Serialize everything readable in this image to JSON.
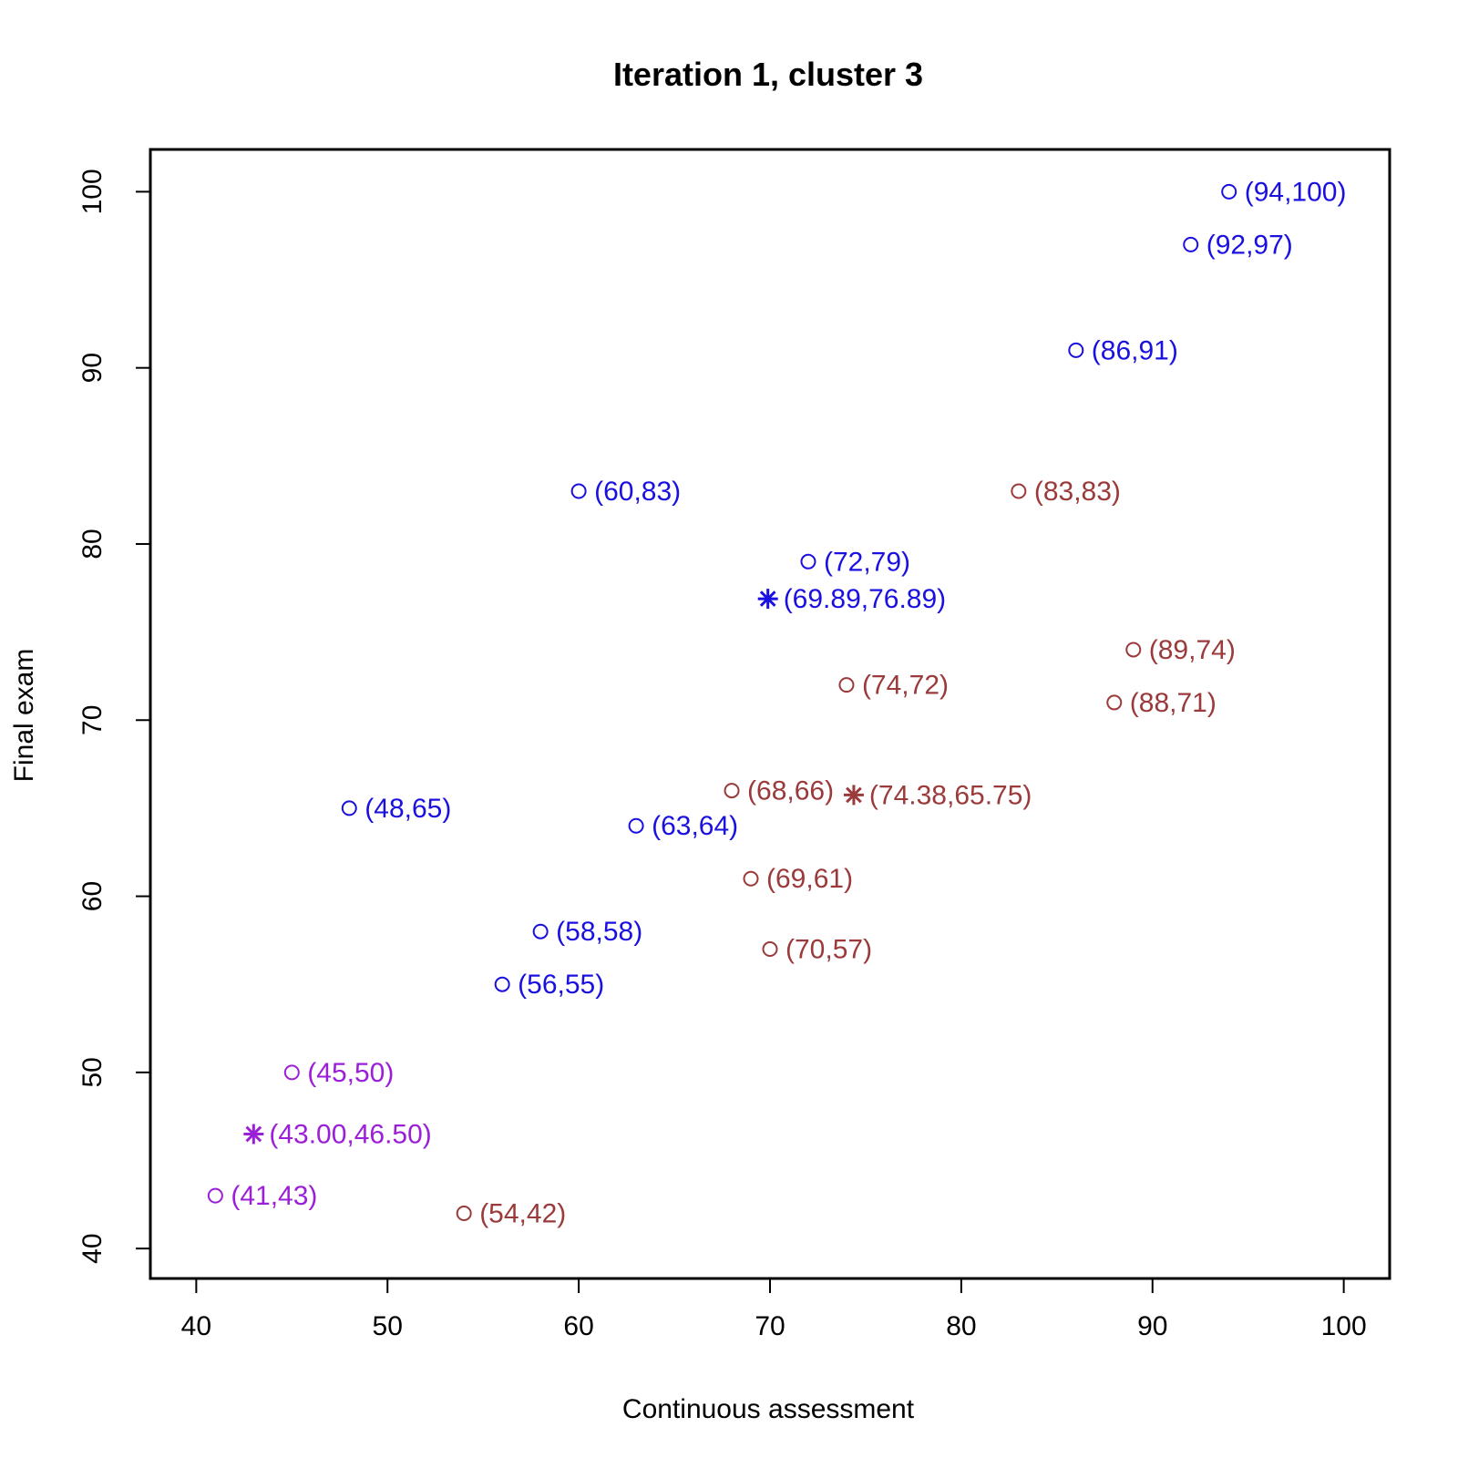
{
  "chart_data": {
    "type": "scatter",
    "title": "Iteration 1, cluster 3",
    "xlabel": "Continuous assessment",
    "ylabel": "Final exam",
    "xlim": [
      37.6,
      102.4
    ],
    "ylim": [
      38.3,
      102.4
    ],
    "xticks": [
      40,
      50,
      60,
      70,
      80,
      90,
      100
    ],
    "yticks": [
      40,
      50,
      60,
      70,
      80,
      90,
      100
    ],
    "grid": false,
    "series": [
      {
        "color": "#1a10e0",
        "points": [
          {
            "x": 94,
            "y": 100,
            "label": "(94,100)"
          },
          {
            "x": 92,
            "y": 97,
            "label": "(92,97)"
          },
          {
            "x": 86,
            "y": 91,
            "label": "(86,91)"
          },
          {
            "x": 60,
            "y": 83,
            "label": "(60,83)"
          },
          {
            "x": 72,
            "y": 79,
            "label": "(72,79)"
          },
          {
            "x": 48,
            "y": 65,
            "label": "(48,65)"
          },
          {
            "x": 63,
            "y": 64,
            "label": "(63,64)"
          },
          {
            "x": 58,
            "y": 58,
            "label": "(58,58)"
          },
          {
            "x": 56,
            "y": 55,
            "label": "(56,55)"
          }
        ],
        "centroid": {
          "x": 69.89,
          "y": 76.89,
          "label": "(69.89,76.89)"
        }
      },
      {
        "color": "#9b3a3a",
        "points": [
          {
            "x": 83,
            "y": 83,
            "label": "(83,83)"
          },
          {
            "x": 89,
            "y": 74,
            "label": "(89,74)"
          },
          {
            "x": 74,
            "y": 72,
            "label": "(74,72)"
          },
          {
            "x": 88,
            "y": 71,
            "label": "(88,71)"
          },
          {
            "x": 68,
            "y": 66,
            "label": "(68,66)"
          },
          {
            "x": 69,
            "y": 61,
            "label": "(69,61)"
          },
          {
            "x": 70,
            "y": 57,
            "label": "(70,57)"
          },
          {
            "x": 54,
            "y": 42,
            "label": "(54,42)"
          }
        ],
        "centroid": {
          "x": 74.38,
          "y": 65.75,
          "label": "(74.38,65.75)"
        }
      },
      {
        "color": "#9b1fd6",
        "points": [
          {
            "x": 45,
            "y": 50,
            "label": "(45,50)"
          },
          {
            "x": 41,
            "y": 43,
            "label": "(41,43)"
          }
        ],
        "centroid": {
          "x": 43.0,
          "y": 46.5,
          "label": "(43.00,46.50)"
        }
      }
    ]
  }
}
